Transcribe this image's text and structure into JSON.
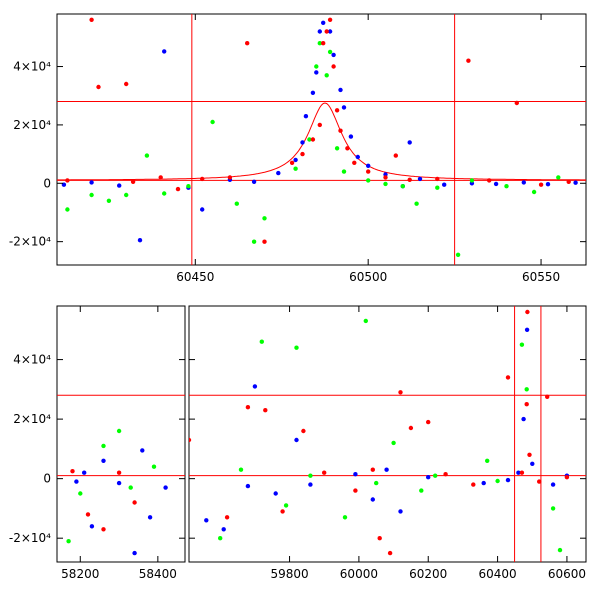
{
  "chart_data": [
    {
      "type": "scatter",
      "panel": "top",
      "xlim": [
        60410,
        60563
      ],
      "ylim": [
        -28000,
        58000
      ],
      "xticks": [
        {
          "value": 60450,
          "label": "60450"
        },
        {
          "value": 60500,
          "label": "60500"
        },
        {
          "value": 60550,
          "label": "60550"
        }
      ],
      "yticks": [
        {
          "value": -20000,
          "label": "-2×10⁴"
        },
        {
          "value": 0,
          "label": "0"
        },
        {
          "value": 20000,
          "label": "2×10⁴"
        },
        {
          "value": 40000,
          "label": "4×10⁴"
        }
      ],
      "hlines": [
        28000,
        1000
      ],
      "vlines": [
        60449,
        60525
      ],
      "model_curve": {
        "color": "#ff0000",
        "peak_x": 60487.5,
        "peak_y": 27500,
        "baseline": 1000,
        "width": 6
      },
      "series": [
        {
          "color": "#0000ff",
          "values": [
            [
              60412,
              -500
            ],
            [
              60420,
              300
            ],
            [
              60428,
              -800
            ],
            [
              60434,
              -19500
            ],
            [
              60441,
              45200
            ],
            [
              60448,
              -1500
            ],
            [
              60452,
              -9000
            ],
            [
              60460,
              1200
            ],
            [
              60467,
              500
            ],
            [
              60474,
              3500
            ],
            [
              60479,
              8000
            ],
            [
              60481,
              14000
            ],
            [
              60482,
              23000
            ],
            [
              60484,
              31000
            ],
            [
              60485,
              38000
            ],
            [
              60486,
              52000
            ],
            [
              60487,
              55000
            ],
            [
              60489,
              52000
            ],
            [
              60490,
              44000
            ],
            [
              60492,
              32000
            ],
            [
              60493,
              26000
            ],
            [
              60495,
              16000
            ],
            [
              60497,
              9000
            ],
            [
              60500,
              6000
            ],
            [
              60505,
              3000
            ],
            [
              60510,
              -1000
            ],
            [
              60512,
              14000
            ],
            [
              60515,
              1500
            ],
            [
              60522,
              -500
            ],
            [
              60530,
              0
            ],
            [
              60537,
              -200
            ],
            [
              60545,
              300
            ],
            [
              60552,
              -300
            ],
            [
              60560,
              200
            ]
          ]
        },
        {
          "color": "#00ff00",
          "values": [
            [
              60413,
              -9000
            ],
            [
              60420,
              -4000
            ],
            [
              60425,
              -6000
            ],
            [
              60430,
              -4000
            ],
            [
              60436,
              9500
            ],
            [
              60441,
              -3500
            ],
            [
              60448,
              -1000
            ],
            [
              60455,
              21000
            ],
            [
              60462,
              -7000
            ],
            [
              60467,
              -20000
            ],
            [
              60470,
              -12000
            ],
            [
              60479,
              5000
            ],
            [
              60483,
              15000
            ],
            [
              60485,
              40000
            ],
            [
              60486,
              48000
            ],
            [
              60488,
              37000
            ],
            [
              60489,
              45000
            ],
            [
              60491,
              12000
            ],
            [
              60493,
              4000
            ],
            [
              60500,
              1000
            ],
            [
              60505,
              -200
            ],
            [
              60510,
              -1000
            ],
            [
              60514,
              -7000
            ],
            [
              60520,
              -1500
            ],
            [
              60526,
              -24500
            ],
            [
              60530,
              1000
            ],
            [
              60540,
              -1000
            ],
            [
              60548,
              -3000
            ],
            [
              60555,
              2000
            ]
          ]
        },
        {
          "color": "#ff0000",
          "values": [
            [
              60413,
              1000
            ],
            [
              60420,
              56000
            ],
            [
              60422,
              33000
            ],
            [
              60430,
              34000
            ],
            [
              60432,
              500
            ],
            [
              60440,
              2000
            ],
            [
              60445,
              -2000
            ],
            [
              60452,
              1500
            ],
            [
              60460,
              2000
            ],
            [
              60465,
              48000
            ],
            [
              60470,
              -20000
            ],
            [
              60478,
              7000
            ],
            [
              60481,
              10000
            ],
            [
              60484,
              15000
            ],
            [
              60486,
              20000
            ],
            [
              60487,
              48000
            ],
            [
              60488,
              52000
            ],
            [
              60489,
              56000
            ],
            [
              60490,
              40000
            ],
            [
              60491,
              25000
            ],
            [
              60492,
              18000
            ],
            [
              60494,
              12000
            ],
            [
              60496,
              7000
            ],
            [
              60500,
              4000
            ],
            [
              60505,
              2000
            ],
            [
              60508,
              9500
            ],
            [
              60512,
              1200
            ],
            [
              60520,
              1500
            ],
            [
              60529,
              42000
            ],
            [
              60535,
              1000
            ],
            [
              60543,
              27500
            ],
            [
              60550,
              -500
            ],
            [
              60558,
              500
            ]
          ]
        }
      ]
    },
    {
      "type": "scatter",
      "panel": "bottom",
      "broken_axis": true,
      "segments": [
        {
          "xlim": [
            58140,
            58470
          ]
        },
        {
          "xlim": [
            59510,
            60655
          ]
        }
      ],
      "ylim": [
        -28000,
        58000
      ],
      "xticks": [
        {
          "value": 58200,
          "label": "58200"
        },
        {
          "value": 58400,
          "label": "58400"
        },
        {
          "value": 59800,
          "label": "59800"
        },
        {
          "value": 60000,
          "label": "60000"
        },
        {
          "value": 60200,
          "label": "60200"
        },
        {
          "value": 60400,
          "label": "60400"
        },
        {
          "value": 60600,
          "label": "60600"
        }
      ],
      "yticks": [
        {
          "value": -20000,
          "label": "-2×10⁴"
        },
        {
          "value": 0,
          "label": "0"
        },
        {
          "value": 20000,
          "label": "2×10⁴"
        },
        {
          "value": 40000,
          "label": "4×10⁴"
        }
      ],
      "hlines": [
        28000,
        1000
      ],
      "vlines": [
        60449,
        60525
      ],
      "series": [
        {
          "color": "#0000ff",
          "values": [
            [
              58190,
              -1000
            ],
            [
              58210,
              2000
            ],
            [
              58230,
              -16000
            ],
            [
              58260,
              6000
            ],
            [
              58300,
              -1500
            ],
            [
              58340,
              -25000
            ],
            [
              58360,
              9500
            ],
            [
              58380,
              -13000
            ],
            [
              58420,
              -3000
            ],
            [
              59560,
              -14000
            ],
            [
              59610,
              -17000
            ],
            [
              59680,
              -2500
            ],
            [
              59700,
              31000
            ],
            [
              59760,
              -5000
            ],
            [
              59820,
              13000
            ],
            [
              59860,
              -2000
            ],
            [
              59990,
              1500
            ],
            [
              60040,
              -7000
            ],
            [
              60080,
              3000
            ],
            [
              60120,
              -11000
            ],
            [
              60200,
              500
            ],
            [
              60360,
              -1500
            ],
            [
              60430,
              -500
            ],
            [
              60460,
              2000
            ],
            [
              60475,
              20000
            ],
            [
              60485,
              50000
            ],
            [
              60500,
              5000
            ],
            [
              60560,
              -2000
            ],
            [
              60600,
              1000
            ]
          ]
        },
        {
          "color": "#00ff00",
          "values": [
            [
              58170,
              -21000
            ],
            [
              58200,
              -5000
            ],
            [
              58260,
              11000
            ],
            [
              58300,
              16000
            ],
            [
              58330,
              -3000
            ],
            [
              58390,
              4000
            ],
            [
              59600,
              -20000
            ],
            [
              59660,
              3000
            ],
            [
              59720,
              46000
            ],
            [
              59790,
              -9000
            ],
            [
              59820,
              44000
            ],
            [
              59860,
              1000
            ],
            [
              59960,
              -13000
            ],
            [
              60020,
              53000
            ],
            [
              60050,
              -1500
            ],
            [
              60100,
              12000
            ],
            [
              60180,
              -4000
            ],
            [
              60220,
              1000
            ],
            [
              60370,
              6000
            ],
            [
              60400,
              -800
            ],
            [
              60470,
              45000
            ],
            [
              60484,
              30000
            ],
            [
              60560,
              -10000
            ],
            [
              60580,
              -24000
            ]
          ]
        },
        {
          "color": "#ff0000",
          "values": [
            [
              58180,
              2500
            ],
            [
              58220,
              -12000
            ],
            [
              58260,
              -17000
            ],
            [
              58300,
              2000
            ],
            [
              58340,
              -8000
            ],
            [
              59510,
              13000
            ],
            [
              59620,
              -13000
            ],
            [
              59680,
              24000
            ],
            [
              59730,
              23000
            ],
            [
              59780,
              -11000
            ],
            [
              59840,
              16000
            ],
            [
              59900,
              2000
            ],
            [
              59990,
              -4000
            ],
            [
              60040,
              3000
            ],
            [
              60060,
              -20000
            ],
            [
              60090,
              -25000
            ],
            [
              60120,
              29000
            ],
            [
              60150,
              17000
            ],
            [
              60200,
              19000
            ],
            [
              60250,
              1500
            ],
            [
              60330,
              -2000
            ],
            [
              60430,
              34000
            ],
            [
              60470,
              2000
            ],
            [
              60484,
              25000
            ],
            [
              60486,
              56000
            ],
            [
              60492,
              8000
            ],
            [
              60520,
              -1000
            ],
            [
              60543,
              27500
            ],
            [
              60600,
              500
            ]
          ]
        }
      ]
    }
  ]
}
